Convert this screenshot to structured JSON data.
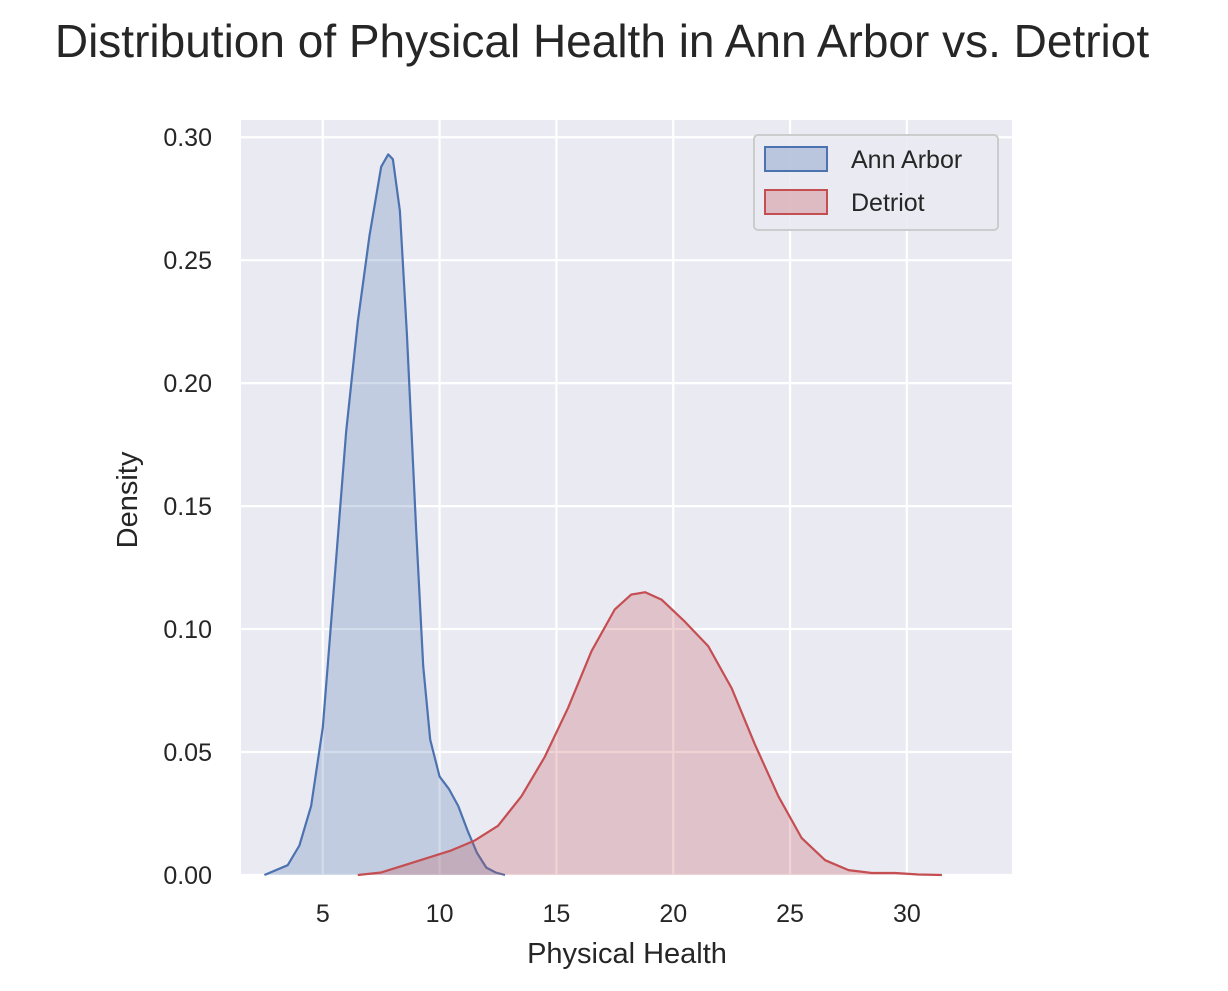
{
  "chart_data": {
    "type": "area",
    "title": "Distribution of Physical Health in Ann Arbor vs. Detriot",
    "xlabel": "Physical Health",
    "ylabel": "Density",
    "xlim": [
      1.5,
      34.5
    ],
    "ylim": [
      0,
      0.307
    ],
    "xticks": [
      5,
      10,
      15,
      20,
      25,
      30
    ],
    "yticks": [
      0.0,
      0.05,
      0.1,
      0.15,
      0.2,
      0.25,
      0.3
    ],
    "xtick_labels": [
      "5",
      "10",
      "15",
      "20",
      "25",
      "30"
    ],
    "ytick_labels": [
      "0.00",
      "0.05",
      "0.10",
      "0.15",
      "0.20",
      "0.25",
      "0.30"
    ],
    "grid": true,
    "legend_position": "top-right",
    "background": "#eaeaf2",
    "series": [
      {
        "name": "Ann Arbor",
        "color": "#4c72b0",
        "x": [
          2.5,
          3.5,
          4.0,
          4.5,
          5.0,
          5.5,
          6.0,
          6.5,
          7.0,
          7.5,
          7.8,
          8.0,
          8.3,
          8.6,
          9.0,
          9.3,
          9.6,
          10.0,
          10.4,
          10.8,
          11.2,
          11.6,
          12.0,
          12.4,
          12.8
        ],
        "y": [
          0.0,
          0.004,
          0.012,
          0.028,
          0.06,
          0.12,
          0.18,
          0.225,
          0.26,
          0.288,
          0.293,
          0.291,
          0.27,
          0.22,
          0.14,
          0.085,
          0.055,
          0.04,
          0.035,
          0.028,
          0.018,
          0.009,
          0.003,
          0.001,
          0.0
        ]
      },
      {
        "name": "Detriot",
        "color": "#c44e52",
        "x": [
          6.5,
          7.5,
          8.5,
          9.5,
          10.5,
          11.5,
          12.5,
          13.5,
          14.5,
          15.5,
          16.5,
          17.5,
          18.2,
          18.8,
          19.5,
          20.5,
          21.5,
          22.5,
          23.5,
          24.5,
          25.5,
          26.5,
          27.5,
          28.5,
          29.5,
          30.5,
          31.5
        ],
        "y": [
          0.0,
          0.001,
          0.004,
          0.007,
          0.01,
          0.014,
          0.02,
          0.032,
          0.048,
          0.068,
          0.091,
          0.108,
          0.114,
          0.115,
          0.112,
          0.103,
          0.093,
          0.076,
          0.053,
          0.032,
          0.015,
          0.006,
          0.002,
          0.0008,
          0.0008,
          0.0002,
          0.0
        ]
      }
    ]
  }
}
